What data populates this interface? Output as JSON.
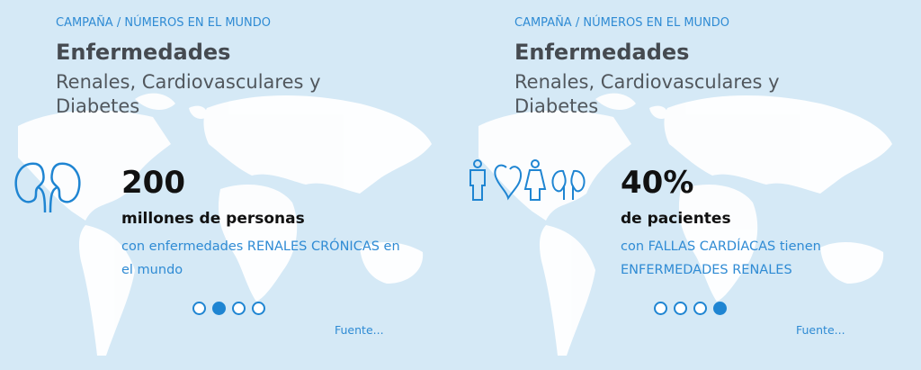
{
  "cards": [
    {
      "kicker": "CAMPAÑA / NÚMEROS EN EL MUNDO",
      "title": "Enfermedades",
      "subtitle": "Renales, Cardiovasculares y Diabetes",
      "stat": "200",
      "stat_label": "millones de personas",
      "description": "con enfermedades RENALES CRÓNICAS en el mundo",
      "link": "Fuente..."
    },
    {
      "kicker": "CAMPAÑA / NÚMEROS EN EL MUNDO",
      "title": "Enfermedades",
      "subtitle": "Renales, Cardiovasculares y Diabetes",
      "stat": "40%",
      "stat_label": "de pacientes",
      "description": "con FALLAS CARDÍACAS tienen ENFERMEDADES RENALES",
      "link": "Fuente..."
    }
  ]
}
